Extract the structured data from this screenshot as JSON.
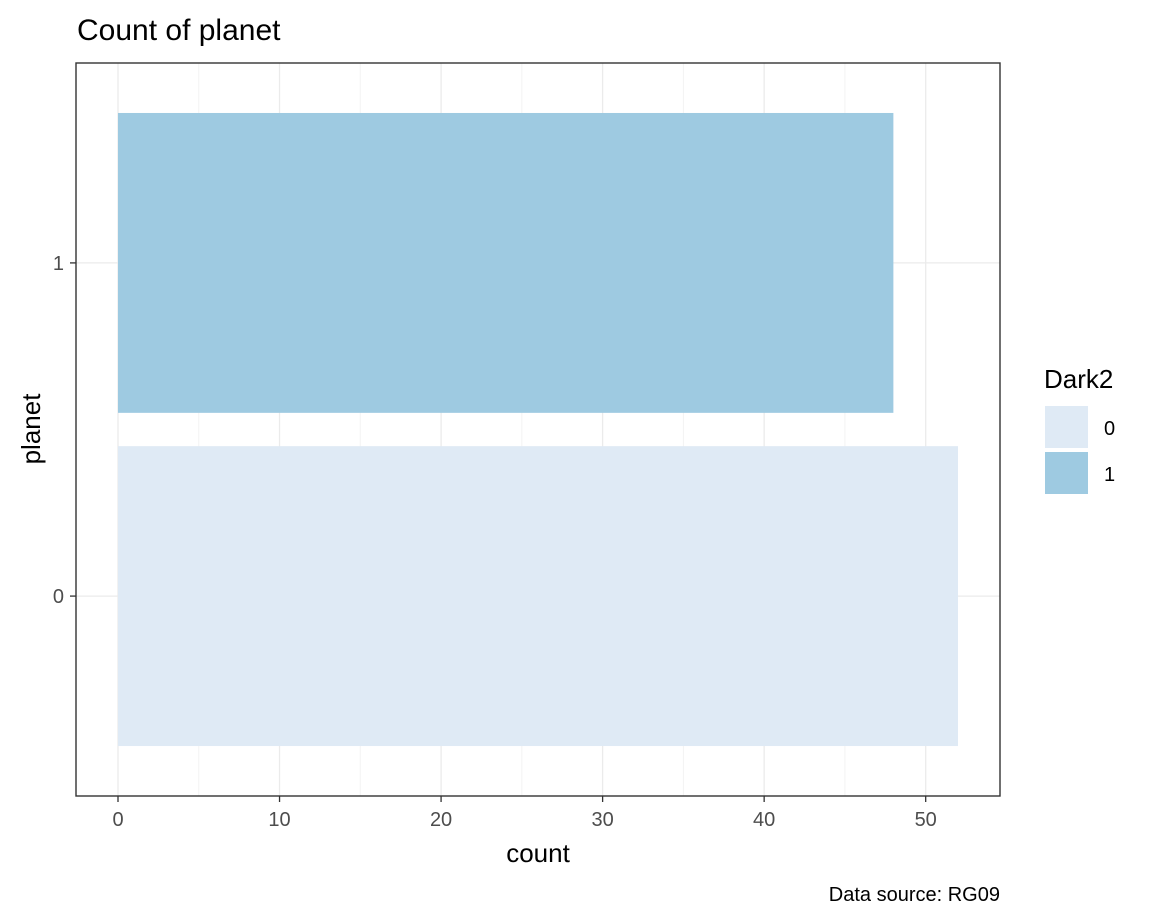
{
  "chart_data": {
    "type": "bar",
    "orientation": "horizontal",
    "title": "Count of planet",
    "xlabel": "count",
    "ylabel": "planet",
    "caption": "Data source: RG09",
    "categories": [
      "0",
      "1"
    ],
    "values": [
      52,
      48
    ],
    "x_ticks": [
      "0",
      "10",
      "20",
      "30",
      "40",
      "50"
    ],
    "x_tick_values": [
      0,
      10,
      20,
      30,
      40,
      50
    ],
    "xlim": [
      -2.6,
      54.6
    ],
    "grid": true,
    "legend": {
      "title": "Dark2",
      "position": "right",
      "entries": [
        {
          "label": "0",
          "color": "#dfeaf5"
        },
        {
          "label": "1",
          "color": "#9ecae1"
        }
      ]
    },
    "colors": {
      "bar_0": "#dfeaf5",
      "bar_1": "#9ecae1",
      "grid": "#ebebeb",
      "panel_border": "#333333",
      "tick_text": "#4d4d4d"
    }
  }
}
